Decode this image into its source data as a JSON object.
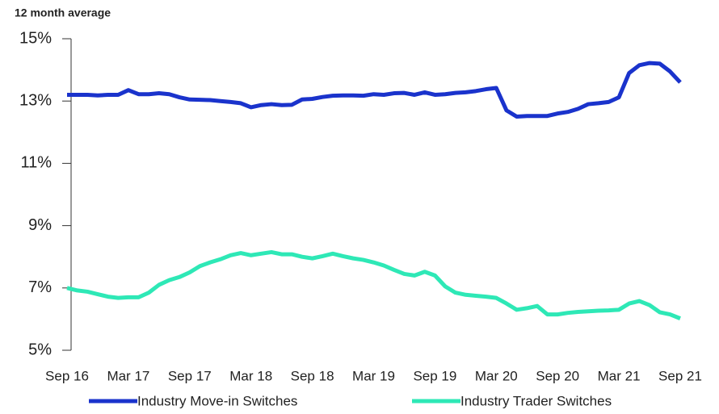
{
  "chart_data": {
    "type": "line",
    "subtitle": "12 month average",
    "categories": [
      "Sep 16",
      null,
      null,
      null,
      null,
      null,
      "Mar 17",
      null,
      null,
      null,
      null,
      null,
      "Sep 17",
      null,
      null,
      null,
      null,
      null,
      "Mar 18",
      null,
      null,
      null,
      null,
      null,
      "Sep 18",
      null,
      null,
      null,
      null,
      null,
      "Mar 19",
      null,
      null,
      null,
      null,
      null,
      "Sep 19",
      null,
      null,
      null,
      null,
      null,
      "Mar 20",
      null,
      null,
      null,
      null,
      null,
      "Sep 20",
      null,
      null,
      null,
      null,
      null,
      "Mar 21",
      null,
      null,
      null,
      null,
      null,
      "Sep 21"
    ],
    "series": [
      {
        "name": "Industry Move-in Switches",
        "color": "#1a33cc",
        "values": [
          13.2,
          13.2,
          13.2,
          13.18,
          13.2,
          13.2,
          13.35,
          13.22,
          13.22,
          13.25,
          13.22,
          13.12,
          13.05,
          13.04,
          13.03,
          13.0,
          12.97,
          12.93,
          12.8,
          12.87,
          12.9,
          12.87,
          12.88,
          13.05,
          13.07,
          13.13,
          13.17,
          13.18,
          13.18,
          13.17,
          13.22,
          13.2,
          13.25,
          13.26,
          13.2,
          13.28,
          13.2,
          13.22,
          13.26,
          13.28,
          13.32,
          13.38,
          13.42,
          12.7,
          12.5,
          12.52,
          12.52,
          12.52,
          12.6,
          12.65,
          12.75,
          12.9,
          12.93,
          12.97,
          13.12,
          13.9,
          14.15,
          14.22,
          14.2,
          13.95,
          13.6
        ]
      },
      {
        "name": "Industry Trader Switches",
        "color": "#2ee8b6",
        "values": [
          7.0,
          6.92,
          6.88,
          6.8,
          6.72,
          6.68,
          6.7,
          6.7,
          6.85,
          7.1,
          7.25,
          7.35,
          7.5,
          7.7,
          7.82,
          7.92,
          8.05,
          8.12,
          8.05,
          8.1,
          8.15,
          8.08,
          8.08,
          8.0,
          7.95,
          8.02,
          8.1,
          8.02,
          7.95,
          7.9,
          7.82,
          7.72,
          7.58,
          7.45,
          7.4,
          7.52,
          7.4,
          7.05,
          6.85,
          6.78,
          6.75,
          6.72,
          6.68,
          6.5,
          6.3,
          6.35,
          6.42,
          6.15,
          6.15,
          6.2,
          6.23,
          6.25,
          6.27,
          6.28,
          6.3,
          6.5,
          6.58,
          6.45,
          6.22,
          6.15,
          6.02
        ]
      }
    ],
    "ylim": [
      5,
      15
    ],
    "yticks": [
      {
        "value": 5,
        "label": "5%"
      },
      {
        "value": 7,
        "label": "7%"
      },
      {
        "value": 9,
        "label": "9%"
      },
      {
        "value": 11,
        "label": "11%"
      },
      {
        "value": 13,
        "label": "13%"
      },
      {
        "value": 15,
        "label": "15%"
      }
    ],
    "grid": false
  }
}
